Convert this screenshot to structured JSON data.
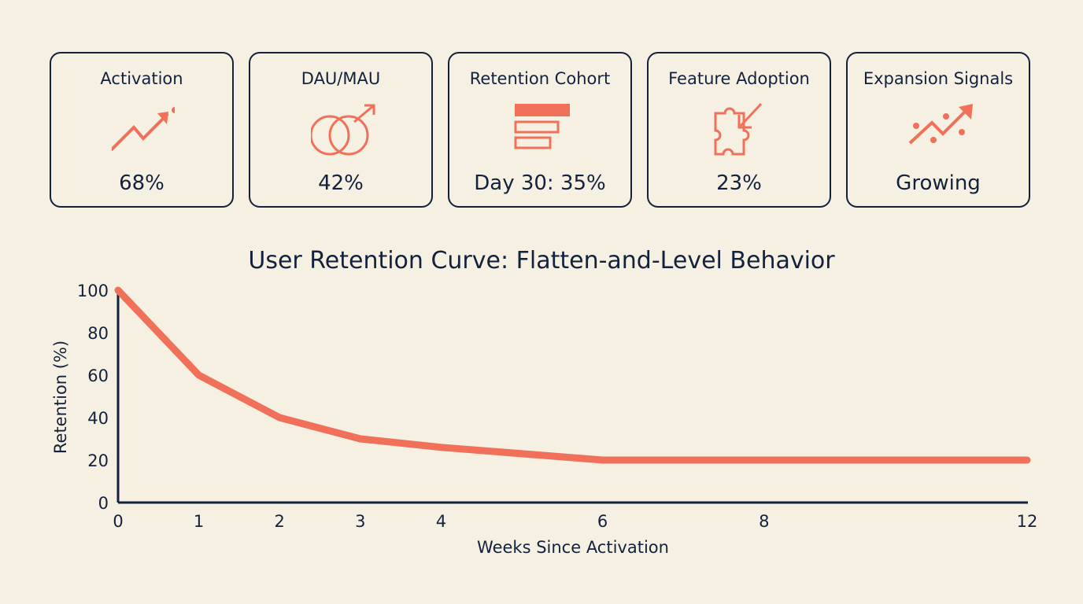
{
  "colors": {
    "background": "#f5f0e2",
    "accent": "#f07059",
    "ink": "#14213d"
  },
  "cards": [
    {
      "title": "Activation",
      "value": "68%",
      "icon": "trend-up-arrow-icon"
    },
    {
      "title": "DAU/MAU",
      "value": "42%",
      "icon": "overlapping-circles-arrow-icon"
    },
    {
      "title": "Retention Cohort",
      "value": "Day 30: 35%",
      "icon": "cohort-bars-icon"
    },
    {
      "title": "Feature Adoption",
      "value": "23%",
      "icon": "puzzle-arrow-icon"
    },
    {
      "title": "Expansion Signals",
      "value": "Growing",
      "icon": "scatter-trend-arrow-icon"
    }
  ],
  "chart_data": {
    "type": "line",
    "title": "User Retention Curve: Flatten-and-Level Behavior",
    "xlabel": "Weeks Since Activation",
    "ylabel": "Retention (%)",
    "x": [
      0,
      1,
      2,
      3,
      4,
      6,
      8,
      12
    ],
    "x_ticks": [
      "0",
      "1",
      "2",
      "3",
      "4",
      "6",
      "8",
      "12"
    ],
    "y_ticks": [
      "0",
      "20",
      "40",
      "60",
      "80",
      "100"
    ],
    "ylim": [
      0,
      100
    ],
    "xlim": [
      0,
      12
    ],
    "grid": false,
    "series": [
      {
        "values": [
          100,
          60,
          40,
          30,
          26,
          20,
          20,
          20
        ],
        "color": "#f07059"
      }
    ]
  }
}
